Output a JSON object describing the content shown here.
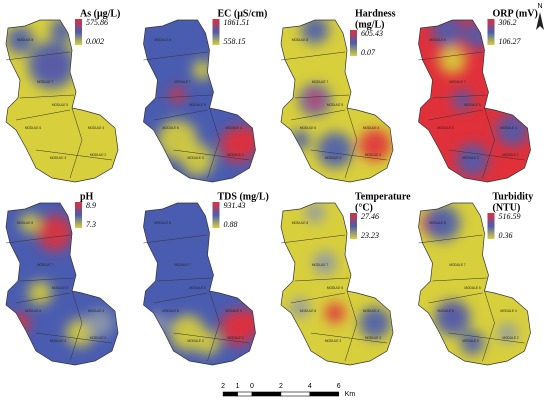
{
  "panels": [
    {
      "title": [
        "As (μg/L)"
      ],
      "max": 575.86,
      "min": 0.002
    },
    {
      "title": [
        "EC (μS/cm)"
      ],
      "max": 1861.51,
      "min": 558.15
    },
    {
      "title": [
        "Hardness",
        "(mg/L)"
      ],
      "max": 605.43,
      "min": 0.07
    },
    {
      "title": [
        "ORP (mV)"
      ],
      "max": 306.2,
      "min": 106.27
    },
    {
      "title": [
        "pH"
      ],
      "max": 8.9,
      "min": 7.3
    },
    {
      "title": [
        "TDS (mg/L)"
      ],
      "max": 931.43,
      "min": 0.88
    },
    {
      "title": [
        "Temperature",
        "(°C)"
      ],
      "max": 27.46,
      "min": 23.23
    },
    {
      "title": [
        "Turbidity",
        "(NTU)"
      ],
      "max": 516.59,
      "min": 0.36
    }
  ],
  "modules": [
    "MODULE 8",
    "MODULE 7",
    "MODULE 6",
    "MODULE 5",
    "MODULE 4",
    "MODULE 3",
    "MODULE 2"
  ],
  "north": "N",
  "scale_bar": {
    "labels": [
      "2",
      "1",
      "0",
      "2",
      "4",
      "6"
    ],
    "unit": "Km"
  }
}
